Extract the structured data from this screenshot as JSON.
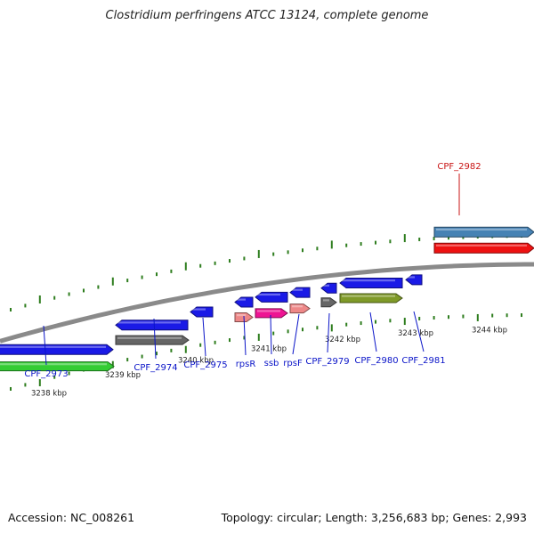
{
  "title": "Clostridium perfringens ATCC 13124, complete genome",
  "footer": {
    "accession": "Accession: NC_008261",
    "topology": "Topology: circular; Length: 3,256,683 bp; Genes: 2,993"
  },
  "colors": {
    "backbone": "#8a8a8a",
    "tick": "#2e7d1e",
    "gene_label": "#0a14c8",
    "highlight_label": "#c81414"
  },
  "axis_labels": [
    "3238 kbp",
    "3239 kbp",
    "3240 kbp",
    "3241 kbp",
    "3242 kbp",
    "3243 kbp",
    "3244 kbp"
  ],
  "features": [
    {
      "label": "CPF_2973",
      "track": "lower",
      "color": "#1a1ae6",
      "strand": "+"
    },
    {
      "label": "",
      "track": "lower-2",
      "color": "#33cc33",
      "strand": "+"
    },
    {
      "label": "CPF_2974",
      "track": "lower",
      "color": "#1a1ae6",
      "strand": "-"
    },
    {
      "label": "",
      "track": "lower-2",
      "color": "#666666",
      "strand": "+"
    },
    {
      "label": "CPF_2975",
      "track": "lower",
      "color": "#1a1ae6",
      "strand": "-"
    },
    {
      "label": "rpsR",
      "track": "lower",
      "color": "#1a1ae6",
      "strand": "-"
    },
    {
      "label": "",
      "track": "lower-2",
      "color": "#ee8888",
      "strand": "+"
    },
    {
      "label": "ssb",
      "track": "lower",
      "color": "#1a1ae6",
      "strand": "-"
    },
    {
      "label": "",
      "track": "lower-2",
      "color": "#ee1493",
      "strand": "+"
    },
    {
      "label": "rpsF",
      "track": "lower",
      "color": "#1a1ae6",
      "strand": "-"
    },
    {
      "label": "",
      "track": "lower-2",
      "color": "#ee8888",
      "strand": "+"
    },
    {
      "label": "CPF_2979",
      "track": "lower",
      "color": "#1a1ae6",
      "strand": "-"
    },
    {
      "label": "",
      "track": "lower-2",
      "color": "#666666",
      "strand": "+"
    },
    {
      "label": "CPF_2980",
      "track": "lower",
      "color": "#1a1ae6",
      "strand": "-"
    },
    {
      "label": "",
      "track": "lower-2",
      "color": "#7f9a28",
      "strand": "+"
    },
    {
      "label": "CPF_2981",
      "track": "lower",
      "color": "#1a1ae6",
      "strand": "-"
    },
    {
      "label": "CPF_2982",
      "track": "upper",
      "color": "#4682b4",
      "strand": "+",
      "highlight": true
    },
    {
      "label": "",
      "track": "upper-2",
      "color": "#ee1111",
      "strand": "+"
    }
  ]
}
